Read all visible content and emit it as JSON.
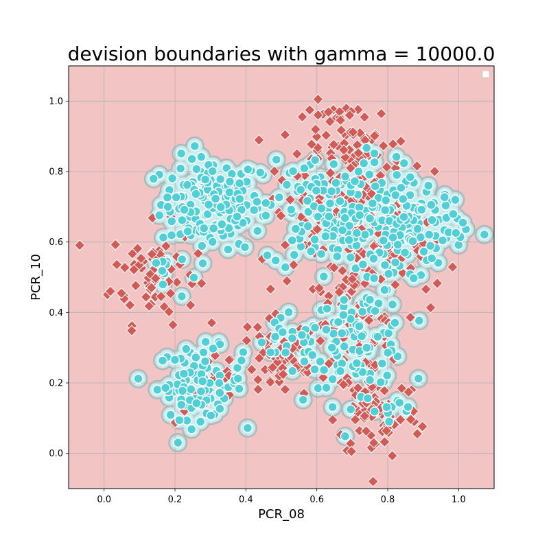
{
  "chart_data": {
    "type": "scatter",
    "title": "devision boundaries with gamma = 10000.0",
    "xlabel": "PCR_08",
    "ylabel": "PCR_10",
    "xlim": [
      -0.1,
      1.1
    ],
    "ylim": [
      -0.1,
      1.1
    ],
    "xticks": [
      "0.0",
      "0.2",
      "0.4",
      "0.6",
      "0.8",
      "1.0"
    ],
    "yticks": [
      "0.0",
      "0.2",
      "0.4",
      "0.6",
      "0.8",
      "1.0"
    ],
    "grid": true,
    "legend": "top-right",
    "background_region_color": "#f2c4c4",
    "positive_region_color": "#c9eef0",
    "colors": {
      "class0": "#d45a56",
      "class1": "#4fd0d6"
    },
    "class0_markers": "diamond",
    "class1_markers": "circle",
    "clusters": [
      {
        "class": 1,
        "center": [
          0.3,
          0.71
        ],
        "spread": [
          0.07,
          0.065
        ],
        "count": 150
      },
      {
        "class": 0,
        "center": [
          0.14,
          0.51
        ],
        "spread": [
          0.06,
          0.07
        ],
        "count": 70
      },
      {
        "class": 1,
        "center": [
          0.17,
          0.51
        ],
        "spread": [
          0.03,
          0.04
        ],
        "count": 10
      },
      {
        "class": 1,
        "center": [
          0.27,
          0.2
        ],
        "spread": [
          0.06,
          0.05
        ],
        "count": 90
      },
      {
        "class": 0,
        "center": [
          0.3,
          0.18
        ],
        "spread": [
          0.05,
          0.05
        ],
        "count": 20
      },
      {
        "class": 0,
        "center": [
          0.5,
          0.27
        ],
        "spread": [
          0.07,
          0.06
        ],
        "count": 70
      },
      {
        "class": 1,
        "center": [
          0.52,
          0.3
        ],
        "spread": [
          0.05,
          0.04
        ],
        "count": 25
      },
      {
        "class": 1,
        "center": [
          0.72,
          0.33
        ],
        "spread": [
          0.07,
          0.07
        ],
        "count": 100
      },
      {
        "class": 0,
        "center": [
          0.7,
          0.35
        ],
        "spread": [
          0.07,
          0.08
        ],
        "count": 60
      },
      {
        "class": 0,
        "center": [
          0.77,
          0.12
        ],
        "spread": [
          0.06,
          0.07
        ],
        "count": 80
      },
      {
        "class": 1,
        "center": [
          0.79,
          0.12
        ],
        "spread": [
          0.05,
          0.05
        ],
        "count": 12
      },
      {
        "class": 1,
        "center": [
          0.67,
          0.68
        ],
        "spread": [
          0.11,
          0.08
        ],
        "count": 200
      },
      {
        "class": 0,
        "center": [
          0.67,
          0.68
        ],
        "spread": [
          0.1,
          0.1
        ],
        "count": 130
      },
      {
        "class": 0,
        "center": [
          0.7,
          0.88
        ],
        "spread": [
          0.07,
          0.06
        ],
        "count": 70
      },
      {
        "class": 1,
        "center": [
          0.88,
          0.64
        ],
        "spread": [
          0.07,
          0.06
        ],
        "count": 90
      },
      {
        "class": 0,
        "center": [
          0.82,
          0.58
        ],
        "spread": [
          0.06,
          0.07
        ],
        "count": 40
      }
    ]
  }
}
